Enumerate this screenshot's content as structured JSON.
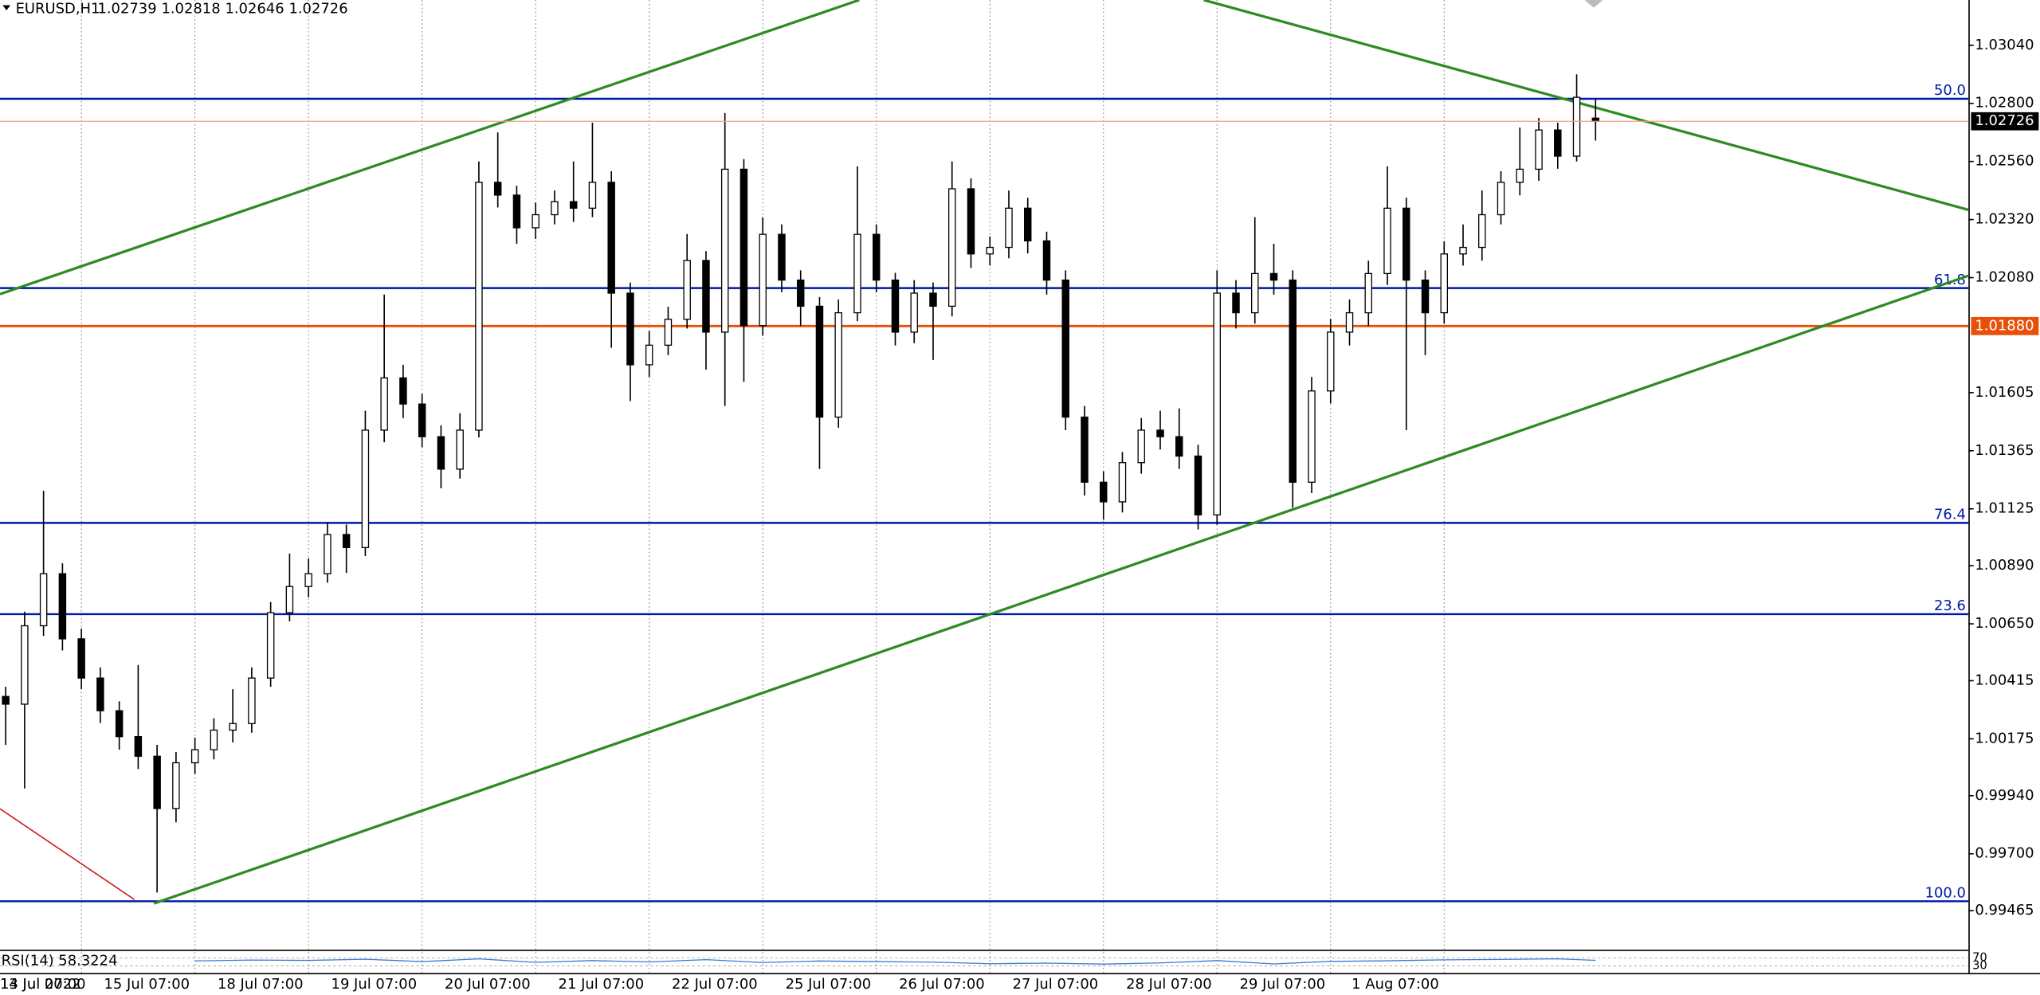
{
  "chart_data": {
    "type": "candlestick",
    "symbol": "EURUSD,H1",
    "open": [
      1.0035,
      1.00318,
      1.00642,
      1.00857,
      1.00588,
      1.00426,
      1.00291,
      1.00184,
      1.00103,
      0.99887,
      1.00076,
      1.0013,
      1.00211,
      1.00238,
      1.00426,
      1.00696,
      1.00804,
      1.00857,
      1.01019,
      1.00965,
      1.0145,
      1.01666,
      1.01558,
      1.01423,
      1.01289,
      1.0145,
      1.02474,
      1.02421,
      1.02286,
      1.0234,
      1.02394,
      1.02367,
      1.02474,
      1.02016,
      1.0172,
      1.01801,
      1.01908,
      1.02151,
      1.01855,
      1.02528,
      1.01882,
      1.02259,
      1.0207,
      1.01962,
      1.01504,
      1.01935,
      1.02259,
      1.0207,
      1.01855,
      1.02016,
      1.01962,
      1.02447,
      1.02178,
      1.02205,
      1.02367,
      1.02232,
      1.0207,
      1.01504,
      1.01235,
      1.01154,
      1.01316,
      1.0145,
      1.01423,
      1.01343,
      1.011,
      1.02016,
      1.01935,
      1.02097,
      1.0207,
      1.01235,
      1.01612,
      1.01855,
      1.01935,
      1.02097,
      1.02367,
      1.0207,
      1.01935,
      1.02178,
      1.02205,
      1.0234,
      1.02474,
      1.02528,
      1.0269,
      1.02582,
      1.02739
    ],
    "high": [
      1.0039,
      1.007,
      1.012,
      1.009,
      1.0063,
      1.0047,
      1.0033,
      1.0048,
      1.0015,
      1.0012,
      1.0018,
      1.0026,
      1.0038,
      1.0047,
      1.0074,
      1.0094,
      1.0092,
      1.0107,
      1.0106,
      1.0153,
      1.0201,
      1.0172,
      1.016,
      1.0147,
      1.0152,
      1.0256,
      1.0268,
      1.0246,
      1.0239,
      1.0244,
      1.0256,
      1.0272,
      1.0252,
      1.0206,
      1.0186,
      1.0196,
      1.0226,
      1.0219,
      1.0276,
      1.0257,
      1.0233,
      1.023,
      1.0211,
      1.02,
      1.0199,
      1.0254,
      1.023,
      1.021,
      1.0207,
      1.0206,
      1.0256,
      1.0249,
      1.0225,
      1.0244,
      1.0241,
      1.0227,
      1.0211,
      1.0155,
      1.0128,
      1.0136,
      1.015,
      1.0153,
      1.0154,
      1.0139,
      1.0211,
      1.0207,
      1.0233,
      1.0222,
      1.0211,
      1.0167,
      1.0191,
      1.0199,
      1.0215,
      1.0254,
      1.0241,
      1.0211,
      1.0223,
      1.023,
      1.0244,
      1.0252,
      1.027,
      1.0274,
      1.0272,
      1.0292,
      1.02818
    ],
    "low": [
      1.0015,
      0.9997,
      1.006,
      1.0054,
      1.0038,
      1.0024,
      1.0013,
      1.0005,
      0.9954,
      0.9983,
      1.0003,
      1.0009,
      1.0016,
      1.002,
      1.0039,
      1.0066,
      1.0076,
      1.0082,
      1.0086,
      1.0093,
      1.014,
      1.015,
      1.0138,
      1.0121,
      1.0125,
      1.0142,
      1.0237,
      1.0222,
      1.0224,
      1.023,
      1.0231,
      1.0233,
      1.0179,
      1.0157,
      1.0167,
      1.0176,
      1.0187,
      1.017,
      1.0155,
      1.0165,
      1.0184,
      1.0202,
      1.0188,
      1.0129,
      1.0146,
      1.019,
      1.0202,
      1.018,
      1.0181,
      1.0174,
      1.0192,
      1.0212,
      1.0213,
      1.0216,
      1.0218,
      1.0201,
      1.0145,
      1.0118,
      1.0108,
      1.0111,
      1.0127,
      1.0137,
      1.0129,
      1.0104,
      1.0106,
      1.0187,
      1.0189,
      1.0201,
      1.0113,
      1.0119,
      1.0156,
      1.018,
      1.0188,
      1.0205,
      1.0145,
      1.0176,
      1.0189,
      1.0213,
      1.0215,
      1.023,
      1.0242,
      1.0248,
      1.0253,
      1.0256,
      1.02646
    ],
    "close": [
      1.00318,
      1.00642,
      1.00857,
      1.00588,
      1.00426,
      1.00291,
      1.00184,
      1.00103,
      0.99887,
      1.00076,
      1.0013,
      1.00211,
      1.00238,
      1.00426,
      1.00696,
      1.00804,
      1.00857,
      1.01019,
      1.00965,
      1.0145,
      1.01666,
      1.01558,
      1.01423,
      1.01289,
      1.0145,
      1.02474,
      1.02421,
      1.02286,
      1.0234,
      1.02394,
      1.02367,
      1.02474,
      1.02016,
      1.0172,
      1.01801,
      1.01908,
      1.02151,
      1.01855,
      1.02528,
      1.01882,
      1.02259,
      1.0207,
      1.01962,
      1.01504,
      1.01935,
      1.02259,
      1.0207,
      1.01855,
      1.02016,
      1.01962,
      1.02447,
      1.02178,
      1.02205,
      1.02367,
      1.02232,
      1.0207,
      1.01504,
      1.01235,
      1.01154,
      1.01316,
      1.0145,
      1.01423,
      1.01343,
      1.011,
      1.02016,
      1.01935,
      1.02097,
      1.0207,
      1.01235,
      1.01612,
      1.01855,
      1.01935,
      1.02097,
      1.02367,
      1.0207,
      1.01935,
      1.02178,
      1.02205,
      1.0234,
      1.02474,
      1.02528,
      1.0269,
      1.02582,
      1.02825,
      1.02726
    ],
    "xlim": [
      -0.3,
      103.7
    ],
    "xticks": [
      {
        "value": -2,
        "label": "13 Jul 2022"
      },
      {
        "value": 4,
        "label": "14 Jul 07:00"
      },
      {
        "value": 10,
        "label": "15 Jul 07:00"
      },
      {
        "value": 16,
        "label": "18 Jul 07:00"
      },
      {
        "value": 22,
        "label": "19 Jul 07:00"
      },
      {
        "value": 28,
        "label": "20 Jul 07:00"
      },
      {
        "value": 34,
        "label": "21 Jul 07:00"
      },
      {
        "value": 40,
        "label": "22 Jul 07:00"
      },
      {
        "value": 46,
        "label": "25 Jul 07:00"
      },
      {
        "value": 52,
        "label": "26 Jul 07:00"
      },
      {
        "value": 58,
        "label": "27 Jul 07:00"
      },
      {
        "value": 64,
        "label": "28 Jul 07:00"
      },
      {
        "value": 70,
        "label": "29 Jul 07:00"
      },
      {
        "value": 76,
        "label": "1 Aug 07:00"
      }
    ],
    "ylim": [
      0.99304,
      1.03227
    ],
    "yticks": [
      {
        "value": 1.0304,
        "label": "1.03040"
      },
      {
        "value": 1.028,
        "label": "1.02800"
      },
      {
        "value": 1.0256,
        "label": "1.02560"
      },
      {
        "value": 1.0232,
        "label": "1.02320"
      },
      {
        "value": 1.0208,
        "label": "1.02080"
      },
      {
        "value": 1.01605,
        "label": "1.01605"
      },
      {
        "value": 1.01365,
        "label": "1.01365"
      },
      {
        "value": 1.01125,
        "label": "1.01125"
      },
      {
        "value": 1.0089,
        "label": "1.00890"
      },
      {
        "value": 1.0065,
        "label": "1.00650"
      },
      {
        "value": 1.00415,
        "label": "1.00415"
      },
      {
        "value": 1.00175,
        "label": "1.00175"
      },
      {
        "value": 0.9994,
        "label": "0.99940"
      },
      {
        "value": 0.997,
        "label": "0.99700"
      },
      {
        "value": 0.99465,
        "label": "0.99465"
      }
    ],
    "fib_levels": {
      "color": "#0018a8",
      "levels": [
        {
          "value": 1.02819,
          "label": "50.0"
        },
        {
          "value": 1.02037,
          "label": "61.8"
        },
        {
          "value": 1.01067,
          "label": "76.4"
        },
        {
          "value": 1.0069,
          "label": "23.6"
        },
        {
          "value": 0.99504,
          "label": "100.0"
        }
      ]
    },
    "hline": {
      "value": 1.0188,
      "label": "1.01880",
      "color": "#e8500a"
    },
    "trendlines": [
      {
        "color": "#2e8b22",
        "x": [
          -0.3,
          45.1
        ],
        "y": [
          1.02012,
          1.03227
        ]
      },
      {
        "color": "#2e8b22",
        "x": [
          63.3,
          103.7
        ],
        "y": [
          1.03227,
          1.0236
        ]
      },
      {
        "color": "#2e8b22",
        "x": [
          7.84,
          103.7
        ],
        "y": [
          0.99495,
          1.02088
        ]
      },
      {
        "color": "#cc2222",
        "x": [
          -0.3,
          6.8
        ],
        "y": [
          0.99886,
          0.99511
        ]
      }
    ],
    "rsi": {
      "label": "RSI(14) 58.3224",
      "color": "#3a7bd5",
      "ylim": [
        0,
        100
      ],
      "x": [
        10,
        13,
        16,
        19,
        22,
        25,
        28,
        31,
        34,
        37,
        40,
        43,
        46,
        49,
        52,
        55,
        58,
        61,
        64,
        67,
        70,
        73,
        76,
        79,
        82,
        84
      ],
      "values": [
        55,
        60,
        58,
        64,
        52,
        66,
        48,
        57,
        50,
        62,
        47,
        55,
        52,
        49,
        41,
        44,
        39,
        45,
        57,
        40,
        53,
        56,
        61,
        63,
        66,
        58.3224
      ],
      "levels": [
        70,
        30
      ]
    }
  }
}
